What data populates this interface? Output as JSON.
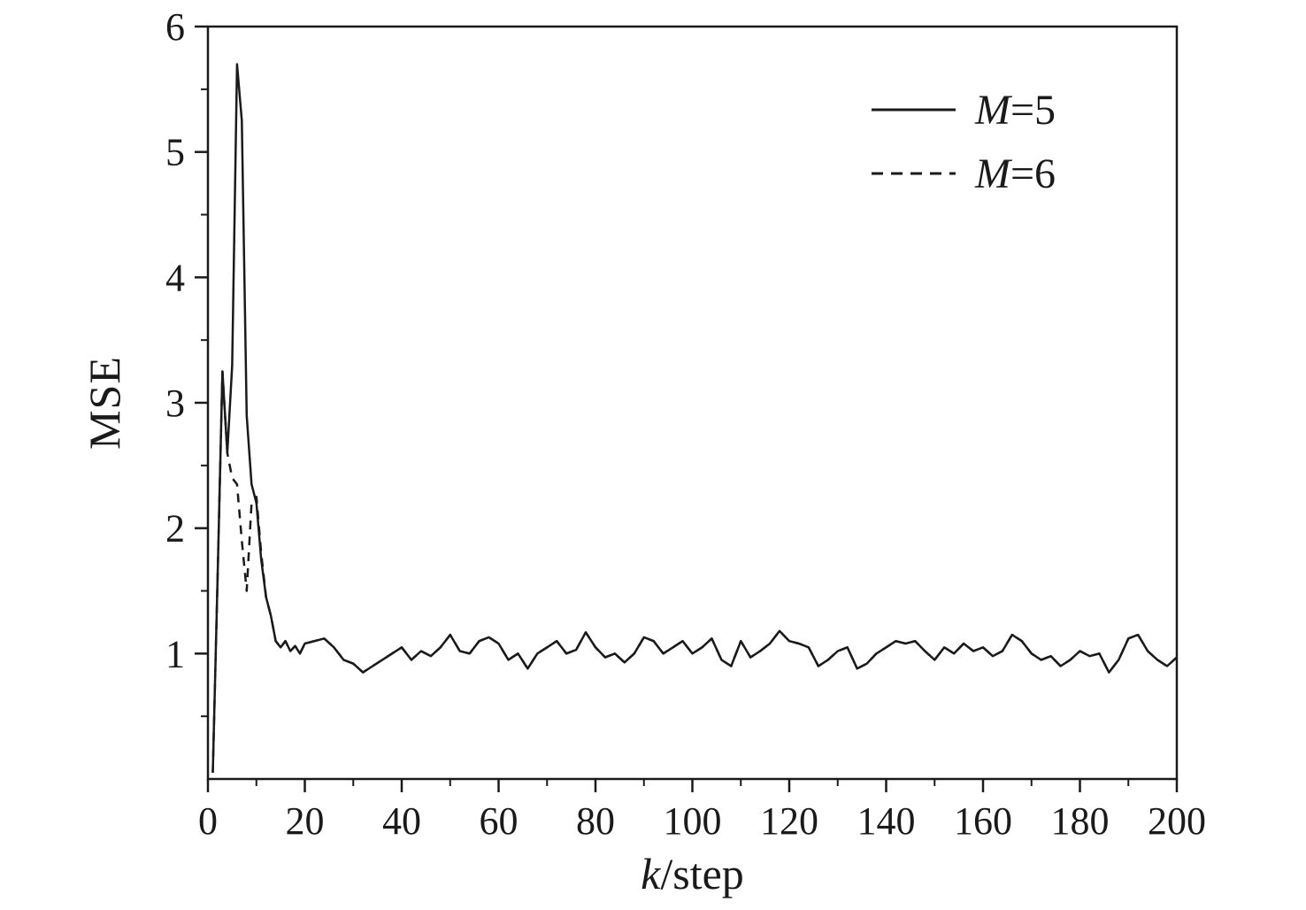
{
  "axis": {
    "y_label": "MSE",
    "x_label_var": "k",
    "x_label_rest": "/step"
  },
  "legend": {
    "items": [
      {
        "var": "M",
        "rest": "=5",
        "style": "solid"
      },
      {
        "var": "M",
        "rest": "=6",
        "style": "dashed"
      }
    ]
  },
  "chart_data": {
    "type": "line",
    "title": "",
    "xlabel": "k/step",
    "ylabel": "MSE",
    "xlim": [
      0,
      200
    ],
    "ylim": [
      0,
      6
    ],
    "x_ticks": [
      0,
      20,
      40,
      60,
      80,
      100,
      120,
      140,
      160,
      180,
      200
    ],
    "y_ticks": [
      1,
      2,
      3,
      4,
      5,
      6
    ],
    "x_minor_step": 10,
    "y_minor_step": 0.5,
    "grid": false,
    "legend_position": "top-right",
    "line_color": "#1a1a1a",
    "x": [
      1,
      2,
      3,
      4,
      5,
      6,
      7,
      8,
      9,
      10,
      11,
      12,
      13,
      14,
      15,
      16,
      17,
      18,
      19,
      20,
      22,
      24,
      26,
      28,
      30,
      32,
      34,
      36,
      38,
      40,
      42,
      44,
      46,
      48,
      50,
      52,
      54,
      56,
      58,
      60,
      62,
      64,
      66,
      68,
      70,
      72,
      74,
      76,
      78,
      80,
      82,
      84,
      86,
      88,
      90,
      92,
      94,
      96,
      98,
      100,
      102,
      104,
      106,
      108,
      110,
      112,
      114,
      116,
      118,
      120,
      122,
      124,
      126,
      128,
      130,
      132,
      134,
      136,
      138,
      140,
      142,
      144,
      146,
      148,
      150,
      152,
      154,
      156,
      158,
      160,
      162,
      164,
      166,
      168,
      170,
      172,
      174,
      176,
      178,
      180,
      182,
      184,
      186,
      188,
      190,
      192,
      194,
      196,
      198,
      200
    ],
    "series": [
      {
        "name": "M=5",
        "style": "solid",
        "values": [
          0.05,
          1.6,
          3.25,
          2.6,
          3.3,
          5.7,
          5.25,
          2.9,
          2.35,
          2.2,
          1.75,
          1.45,
          1.3,
          1.1,
          1.05,
          1.1,
          1.02,
          1.06,
          1.0,
          1.08,
          1.1,
          1.12,
          1.05,
          0.95,
          0.92,
          0.85,
          0.9,
          0.95,
          1.0,
          1.05,
          0.95,
          1.02,
          0.98,
          1.05,
          1.15,
          1.02,
          1.0,
          1.1,
          1.13,
          1.08,
          0.95,
          1.0,
          0.88,
          1.0,
          1.05,
          1.1,
          1.0,
          1.03,
          1.17,
          1.05,
          0.97,
          1.0,
          0.93,
          1.0,
          1.13,
          1.1,
          1.0,
          1.05,
          1.1,
          1.0,
          1.05,
          1.12,
          0.95,
          0.9,
          1.1,
          0.97,
          1.02,
          1.08,
          1.18,
          1.1,
          1.08,
          1.05,
          0.9,
          0.95,
          1.02,
          1.05,
          0.88,
          0.92,
          1.0,
          1.05,
          1.1,
          1.08,
          1.1,
          1.02,
          0.95,
          1.05,
          1.0,
          1.08,
          1.02,
          1.05,
          0.98,
          1.02,
          1.15,
          1.1,
          1.0,
          0.95,
          0.98,
          0.9,
          0.95,
          1.02,
          0.98,
          1.0,
          0.85,
          0.95,
          1.12,
          1.15,
          1.02,
          0.95,
          0.9,
          0.97
        ]
      },
      {
        "name": "M=6",
        "style": "dashed",
        "values": [
          0.05,
          1.6,
          3.25,
          2.6,
          2.4,
          2.35,
          1.9,
          1.5,
          2.2,
          2.25,
          1.8,
          1.45,
          1.3,
          1.1,
          1.05,
          1.1,
          1.02,
          1.06,
          1.0,
          1.08,
          1.1,
          1.12,
          1.05,
          0.95,
          0.92,
          0.85,
          0.9,
          0.95,
          1.0,
          1.05,
          0.95,
          1.02,
          0.98,
          1.05,
          1.15,
          1.02,
          1.0,
          1.1,
          1.13,
          1.08,
          0.95,
          1.0,
          0.88,
          1.0,
          1.05,
          1.1,
          1.0,
          1.03,
          1.17,
          1.05,
          0.97,
          1.0,
          0.93,
          1.0,
          1.13,
          1.1,
          1.0,
          1.05,
          1.1,
          1.0,
          1.05,
          1.12,
          0.95,
          0.9,
          1.1,
          0.97,
          1.02,
          1.08,
          1.18,
          1.1,
          1.08,
          1.05,
          0.9,
          0.95,
          1.02,
          1.05,
          0.88,
          0.92,
          1.0,
          1.05,
          1.1,
          1.08,
          1.1,
          1.02,
          0.95,
          1.05,
          1.0,
          1.08,
          1.02,
          1.05,
          0.98,
          1.02,
          1.15,
          1.1,
          1.0,
          0.95,
          0.98,
          0.9,
          0.95,
          1.02,
          0.98,
          1.0,
          0.85,
          0.95,
          1.12,
          1.15,
          1.02,
          0.95,
          0.9,
          0.97
        ]
      }
    ]
  }
}
